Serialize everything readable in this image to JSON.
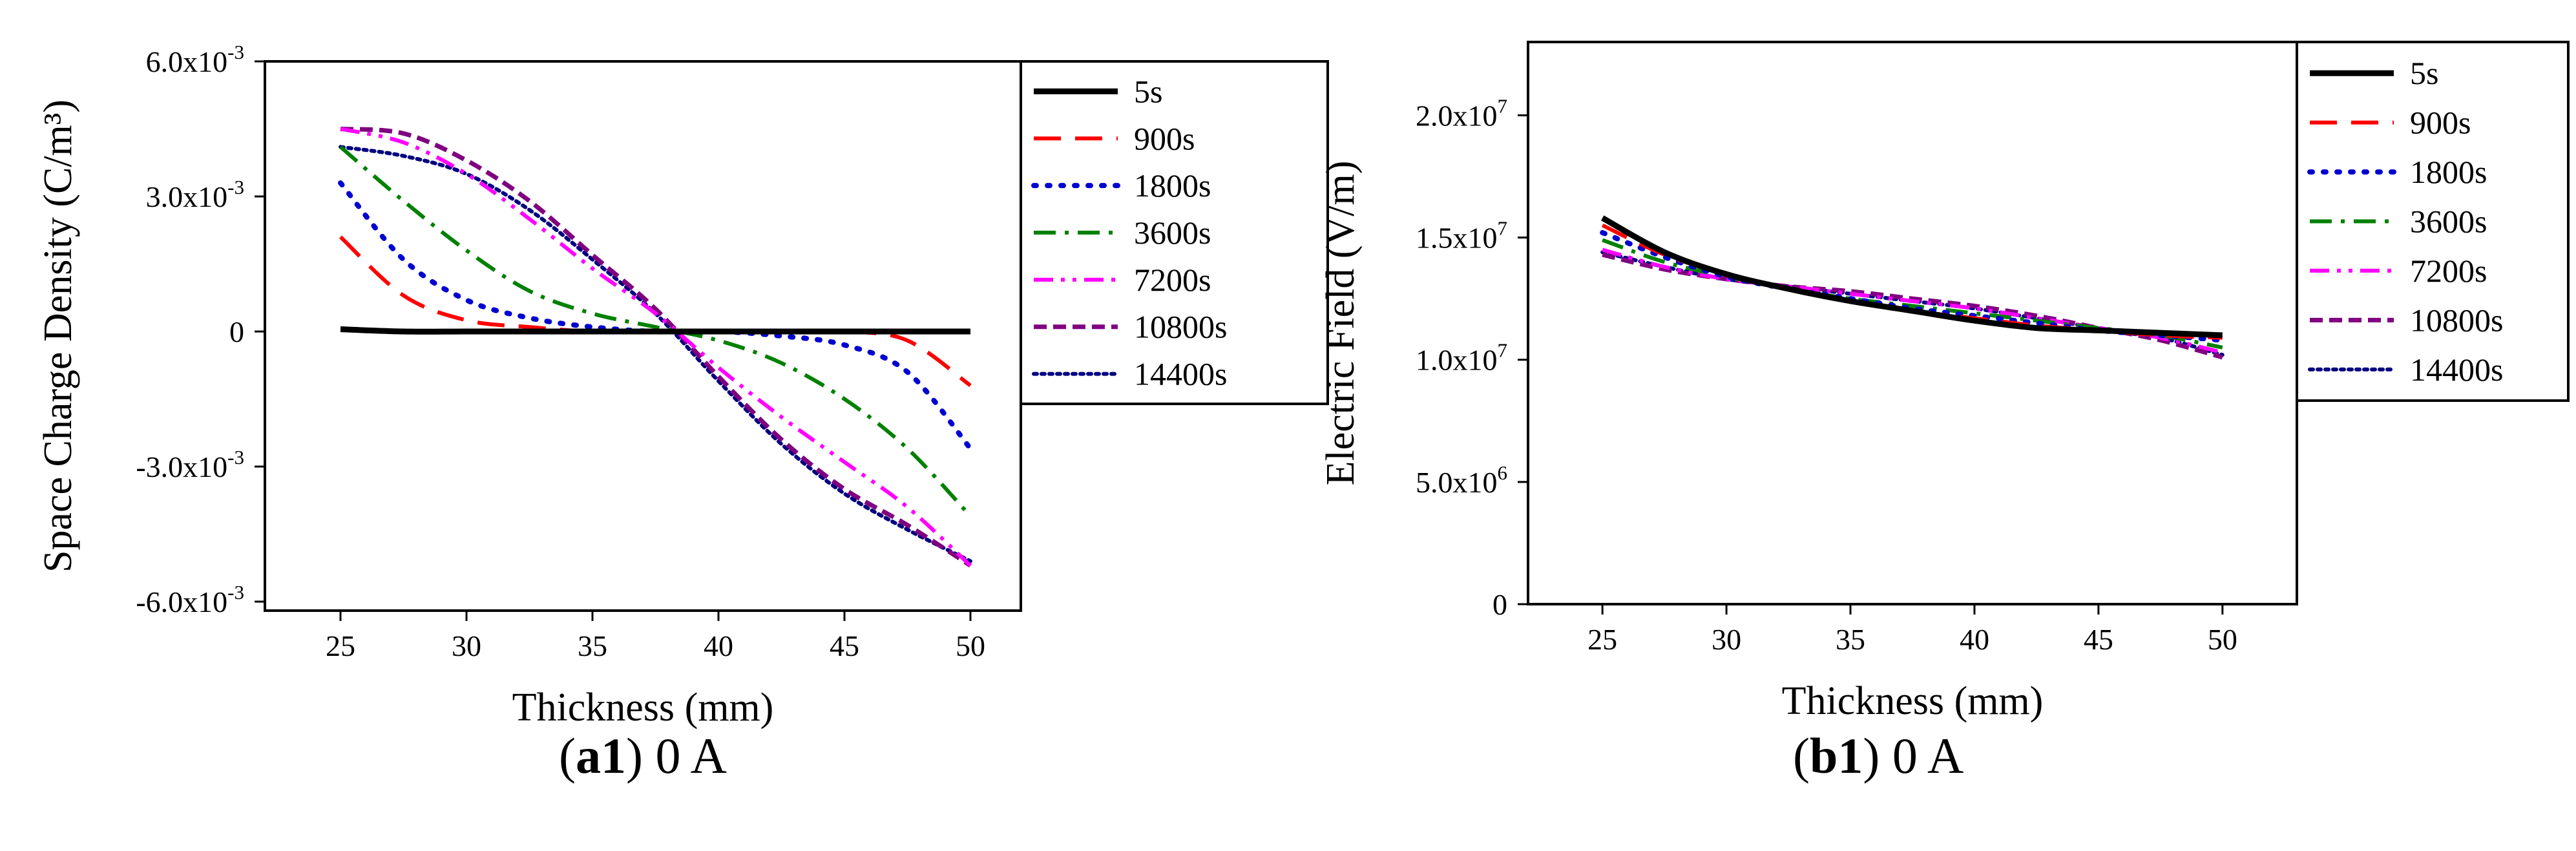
{
  "captions": [
    {
      "letter": "a",
      "num": "1",
      "suffix": ") 0 A"
    },
    {
      "letter": "b",
      "num": "1",
      "suffix": ") 0 A"
    }
  ],
  "series_styles": [
    {
      "name": "5s",
      "color": "#000000",
      "dash": "solid",
      "width": 9
    },
    {
      "name": "900s",
      "color": "#ff0000",
      "dash": "long-dash",
      "width": 6
    },
    {
      "name": "1800s",
      "color": "#0000d0",
      "dash": "dot",
      "width": 8
    },
    {
      "name": "3600s",
      "color": "#008000",
      "dash": "dash-dot",
      "width": 6
    },
    {
      "name": "7200s",
      "color": "#ff00ff",
      "dash": "dash-dot-dot",
      "width": 6
    },
    {
      "name": "10800s",
      "color": "#800080",
      "dash": "short-dash",
      "width": 7
    },
    {
      "name": "14400s",
      "color": "#000080",
      "dash": "dense-dot",
      "width": 6
    }
  ],
  "chart_data": [
    {
      "type": "line",
      "id": "a1",
      "xlabel": "Thickness (mm)",
      "ylabel": "Space Charge Density (C/m³)",
      "xlim": [
        22,
        52
      ],
      "ylim": [
        -0.0062,
        0.006
      ],
      "xticks": [
        25,
        30,
        35,
        40,
        45,
        50
      ],
      "xtick_labels": [
        "25",
        "30",
        "35",
        "40",
        "45",
        "50"
      ],
      "yticks": [
        -0.006,
        -0.003,
        0,
        0.003,
        0.006
      ],
      "ytick_labels": [
        {
          "base": "-6.0x10",
          "exp": "-3"
        },
        {
          "base": "-3.0x10",
          "exp": "-3"
        },
        {
          "base": "0",
          "exp": ""
        },
        {
          "base": "3.0x10",
          "exp": "-3"
        },
        {
          "base": "6.0x10",
          "exp": "-3"
        }
      ],
      "legend_position": "right",
      "grid": false,
      "x": [
        25,
        27.5,
        30,
        32.5,
        35,
        37.5,
        40,
        42.5,
        45,
        47.5,
        50
      ],
      "series": [
        {
          "name": "5s",
          "values": [
            5e-05,
            0,
            0,
            0,
            0,
            0,
            0,
            0,
            0,
            0,
            0
          ]
        },
        {
          "name": "900s",
          "values": [
            0.0021,
            0.0008,
            0.00025,
            0.0001,
            0,
            0,
            0,
            0,
            0,
            -0.0002,
            -0.0012
          ]
        },
        {
          "name": "1800s",
          "values": [
            0.0033,
            0.0016,
            0.0007,
            0.0003,
            0.0001,
            0,
            0,
            -0.0001,
            -0.0003,
            -0.0009,
            -0.0026
          ]
        },
        {
          "name": "3600s",
          "values": [
            0.0041,
            0.0029,
            0.0018,
            0.0009,
            0.0004,
            0.0001,
            -0.0002,
            -0.0007,
            -0.0015,
            -0.0026,
            -0.0041
          ]
        },
        {
          "name": "7200s",
          "values": [
            0.0045,
            0.0042,
            0.0035,
            0.0025,
            0.0014,
            0.0004,
            -0.0008,
            -0.0019,
            -0.0029,
            -0.0039,
            -0.0052
          ]
        },
        {
          "name": "10800s",
          "values": [
            0.0045,
            0.0044,
            0.0038,
            0.0029,
            0.0017,
            0.0005,
            -0.001,
            -0.0024,
            -0.0035,
            -0.0043,
            -0.0052
          ]
        },
        {
          "name": "14400s",
          "values": [
            0.0041,
            0.0039,
            0.0035,
            0.0027,
            0.0016,
            0.0004,
            -0.0011,
            -0.0025,
            -0.0036,
            -0.0044,
            -0.0051
          ]
        }
      ]
    },
    {
      "type": "line",
      "id": "b1",
      "xlabel": "Thickness (mm)",
      "ylabel": "Electric Field (V/m)",
      "xlim": [
        22,
        53
      ],
      "ylim": [
        0,
        23000000
      ],
      "xticks": [
        25,
        30,
        35,
        40,
        45,
        50
      ],
      "xtick_labels": [
        "25",
        "30",
        "35",
        "40",
        "45",
        "50"
      ],
      "yticks": [
        0,
        5000000,
        10000000,
        15000000,
        20000000
      ],
      "ytick_labels": [
        {
          "base": "0",
          "exp": ""
        },
        {
          "base": "5.0x10",
          "exp": "6"
        },
        {
          "base": "1.0x10",
          "exp": "7"
        },
        {
          "base": "1.5x10",
          "exp": "7"
        },
        {
          "base": "2.0x10",
          "exp": "7"
        }
      ],
      "legend_position": "right",
      "grid": false,
      "x": [
        25,
        27.5,
        30,
        32.5,
        35,
        37.5,
        40,
        42.5,
        45,
        47.5,
        50
      ],
      "series": [
        {
          "name": "5s",
          "values": [
            15800000,
            14400000,
            13500000,
            12900000,
            12400000,
            12000000,
            11600000,
            11300000,
            11200000,
            11100000,
            11000000
          ]
        },
        {
          "name": "900s",
          "values": [
            15500000,
            14300000,
            13500000,
            12900000,
            12400000,
            12000000,
            11700000,
            11400000,
            11200000,
            11000000,
            10900000
          ]
        },
        {
          "name": "1800s",
          "values": [
            15200000,
            14200000,
            13400000,
            12900000,
            12500000,
            12100000,
            11800000,
            11500000,
            11200000,
            11000000,
            10800000
          ]
        },
        {
          "name": "3600s",
          "values": [
            14900000,
            14000000,
            13400000,
            12900000,
            12500000,
            12200000,
            11900000,
            11600000,
            11300000,
            11000000,
            10500000
          ]
        },
        {
          "name": "7200s",
          "values": [
            14500000,
            13800000,
            13300000,
            13000000,
            12700000,
            12400000,
            12100000,
            11700000,
            11300000,
            10900000,
            10300000
          ]
        },
        {
          "name": "10800s",
          "values": [
            14300000,
            13700000,
            13300000,
            13000000,
            12800000,
            12500000,
            12200000,
            11800000,
            11300000,
            10800000,
            10100000
          ]
        },
        {
          "name": "14400s",
          "values": [
            14400000,
            13800000,
            13300000,
            13000000,
            12700000,
            12400000,
            12100000,
            11700000,
            11300000,
            10900000,
            10200000
          ]
        }
      ]
    }
  ]
}
